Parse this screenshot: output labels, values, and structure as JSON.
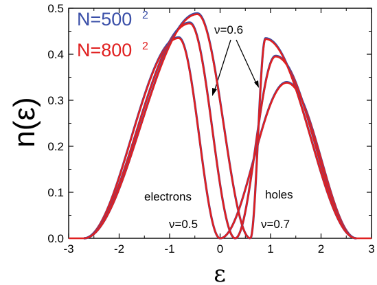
{
  "chart_data": {
    "type": "line",
    "title": "",
    "xlabel": "ε",
    "ylabel": "n(ε)",
    "xlim": [
      -3,
      3
    ],
    "ylim": [
      0,
      0.5
    ],
    "grid": false,
    "legend_position": "top-left",
    "xticks": [
      "-3",
      "-2",
      "-1",
      "0",
      "1",
      "2",
      "3"
    ],
    "yticks": [
      "0.0",
      "0.1",
      "0.2",
      "0.3",
      "0.4",
      "0.5"
    ],
    "legend": [
      {
        "label": "N=500",
        "sup": "2",
        "color": "#3a4fa8"
      },
      {
        "label": "N=800",
        "sup": "2",
        "color": "#e02020"
      }
    ],
    "annotations": {
      "electrons": "electrons",
      "holes": "holes",
      "nu_05": "ν=0.5",
      "nu_06": "ν=0.6",
      "nu_07": "ν=0.7"
    },
    "series": [
      {
        "name": "ν=0.5",
        "curves": {
          "electrons": {
            "gap": 0.0,
            "peak_x": -0.82,
            "peak_y": 0.435
          },
          "holes": {
            "gap": 0.0,
            "peak_x": 1.32,
            "peak_y": 0.338
          }
        }
      },
      {
        "name": "ν=0.6",
        "curves": {
          "electrons": {
            "gap": 0.3,
            "peak_x": -0.6,
            "peak_y": 0.467
          },
          "holes": {
            "gap": 0.3,
            "peak_x": 1.1,
            "peak_y": 0.395
          }
        }
      },
      {
        "name": "ν=0.7",
        "curves": {
          "electrons": {
            "gap": 0.6,
            "peak_x": -0.45,
            "peak_y": 0.487
          },
          "holes": {
            "gap": 0.6,
            "peak_x": 0.9,
            "peak_y": 0.433
          }
        }
      }
    ],
    "edges": {
      "electrons_lower": -2.7,
      "holes_upper": 2.7
    },
    "colors": {
      "red": "#e02020",
      "blue": "#3a4fa8",
      "axis": "#000000"
    }
  }
}
